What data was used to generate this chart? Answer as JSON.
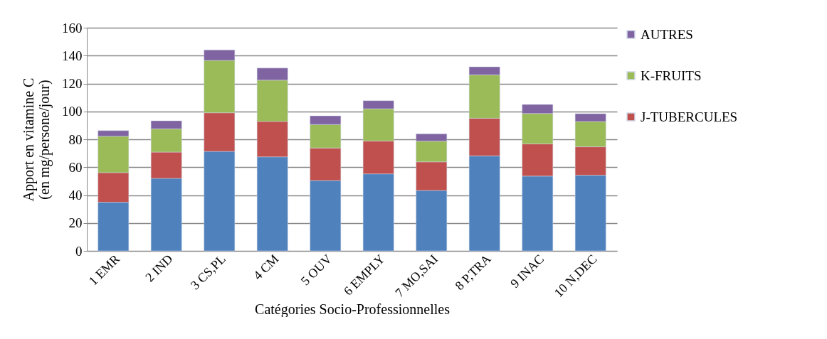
{
  "chart_data": {
    "type": "bar",
    "stacked": true,
    "xlabel": "Catégories Socio-Professionnelles",
    "ylabel": "Apport en vitamine C\n(en mg/persone/jour)",
    "categories": [
      "1 EMR",
      "2 IND",
      "3 CS,PL",
      "4 CM",
      "5 OUV",
      "6 EMPLY",
      "7 MO,SAI",
      "8 P,TRA",
      "9 INAC",
      "10 N,DEC"
    ],
    "series": [
      {
        "color": "#4f81bd",
        "values": [
          34.9,
          52.0,
          71.3,
          67.4,
          50.4,
          55.2,
          43.3,
          68.1,
          53.6,
          54.3
        ]
      },
      {
        "name": "J-TUBERCULES",
        "color": "#c0504d",
        "values": [
          21.2,
          18.8,
          27.7,
          25.4,
          23.4,
          23.6,
          20.5,
          27.0,
          23.1,
          20.3
        ]
      },
      {
        "name": "K-FRUITS",
        "color": "#9bbb59",
        "values": [
          26.1,
          16.7,
          37.6,
          29.6,
          16.8,
          23.1,
          14.9,
          31.1,
          21.8,
          18.1
        ]
      },
      {
        "name": "AUTRES",
        "color": "#8064a2",
        "values": [
          4.0,
          5.8,
          7.5,
          8.7,
          6.2,
          5.8,
          5.2,
          5.8,
          6.5,
          5.7
        ]
      }
    ],
    "ylim": [
      0,
      160
    ],
    "yticks": [
      0,
      20,
      40,
      60,
      80,
      100,
      120,
      140,
      160
    ],
    "grid": "y",
    "legend": "right"
  }
}
